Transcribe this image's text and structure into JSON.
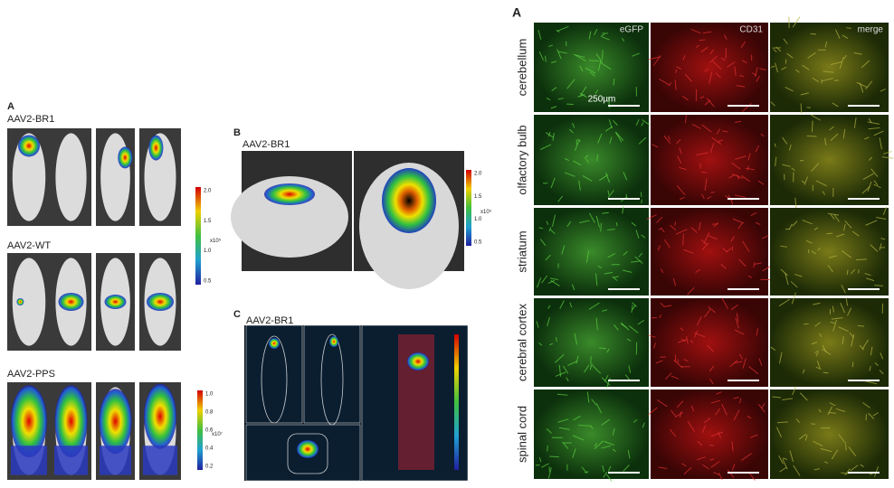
{
  "left_panel": {
    "label": "A",
    "groups": [
      {
        "title": "AAV2-BR1"
      },
      {
        "title": "AAV2-WT"
      },
      {
        "title": "AAV2-PPS"
      }
    ],
    "colorbars": [
      {
        "ticks": [
          "2.0",
          "1.5",
          "1.0",
          "0.5"
        ],
        "unit": "x10⁵"
      },
      {
        "ticks": [
          "1.0",
          "0.8",
          "0.6",
          "0.4",
          "0.2"
        ],
        "unit": "x10⁷"
      }
    ]
  },
  "panel_b": {
    "label": "B",
    "title": "AAV2-BR1",
    "colorbar": {
      "ticks": [
        "2.0",
        "1.5",
        "1.0",
        "0.5"
      ],
      "unit": "x10⁵"
    }
  },
  "panel_c": {
    "label": "C",
    "title": "AAV2-BR1"
  },
  "right_panel": {
    "label": "A",
    "columns": [
      "eGFP",
      "CD31",
      "merge"
    ],
    "rows": [
      "cerebellum",
      "olfactory bulb",
      "striatum",
      "cerebral cortex",
      "spinal cord"
    ],
    "scale_bar": "250µm"
  }
}
